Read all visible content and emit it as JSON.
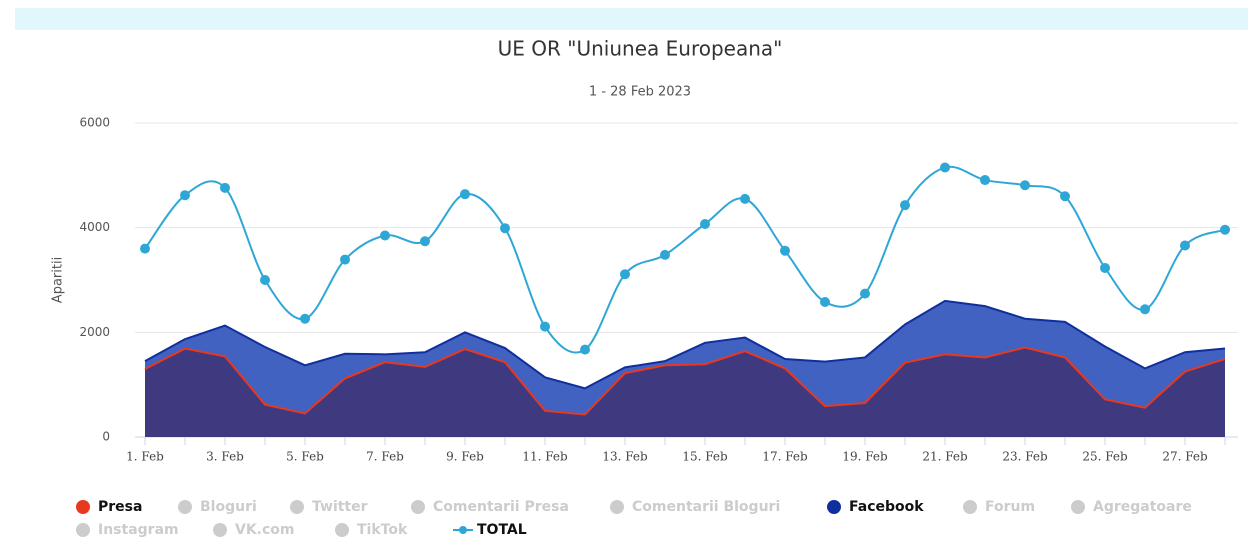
{
  "chart_data": {
    "type": "area",
    "title": "UE OR \"Uniunea Europeana\"",
    "subtitle": "1 - 28 Feb 2023",
    "y_label": "Aparitii",
    "categories": [
      "1. Feb",
      null,
      "3. Feb",
      null,
      "5. Feb",
      null,
      "7. Feb",
      null,
      "9. Feb",
      null,
      "11. Feb",
      null,
      "13. Feb",
      null,
      "15. Feb",
      null,
      "17. Feb",
      null,
      "19. Feb",
      null,
      "21. Feb",
      null,
      "23. Feb",
      null,
      "25. Feb",
      null,
      "27. Feb",
      null
    ],
    "ylim": [
      0,
      6000
    ],
    "yticks": [
      0,
      2000,
      4000,
      6000
    ],
    "grid": true,
    "series": [
      {
        "name": "Presa",
        "color": "#e8381e",
        "fill": "#3f3a80",
        "kind": "area",
        "visible": true,
        "values": [
          1300,
          1690,
          1540,
          620,
          450,
          1120,
          1430,
          1340,
          1680,
          1430,
          500,
          430,
          1220,
          1370,
          1390,
          1640,
          1310,
          590,
          650,
          1420,
          1580,
          1520,
          1710,
          1520,
          720,
          560,
          1250,
          1490
        ]
      },
      {
        "name": "Bloguri",
        "color": "#cccccc",
        "visible": false
      },
      {
        "name": "Twitter",
        "color": "#cccccc",
        "visible": false
      },
      {
        "name": "Comentarii Presa",
        "color": "#cccccc",
        "visible": false
      },
      {
        "name": "Comentarii Bloguri",
        "color": "#cccccc",
        "visible": false
      },
      {
        "name": "Facebook",
        "color": "#0e2f9c",
        "fill": "#4262c2",
        "kind": "area",
        "visible": true,
        "values": [
          1450,
          1870,
          2130,
          1720,
          1370,
          1590,
          1580,
          1620,
          2000,
          1700,
          1140,
          930,
          1330,
          1450,
          1800,
          1900,
          1490,
          1440,
          1520,
          2150,
          2600,
          2500,
          2260,
          2200,
          1730,
          1310,
          1620,
          1690
        ]
      },
      {
        "name": "Forum",
        "color": "#cccccc",
        "visible": false
      },
      {
        "name": "Agregatoare",
        "color": "#cccccc",
        "visible": false
      },
      {
        "name": "Instagram",
        "color": "#cccccc",
        "visible": false
      },
      {
        "name": "VK.com",
        "color": "#cccccc",
        "visible": false
      },
      {
        "name": "TikTok",
        "color": "#cccccc",
        "visible": false
      },
      {
        "name": "TOTAL",
        "color": "#2ea7d6",
        "kind": "spline",
        "visible": true,
        "values": [
          3600,
          4620,
          4760,
          3000,
          2260,
          3390,
          3850,
          3740,
          4640,
          3990,
          2110,
          1670,
          3110,
          3480,
          4070,
          4550,
          3560,
          2580,
          2740,
          4430,
          5150,
          4910,
          4810,
          4600,
          3230,
          2440,
          3660,
          3960
        ]
      }
    ]
  }
}
